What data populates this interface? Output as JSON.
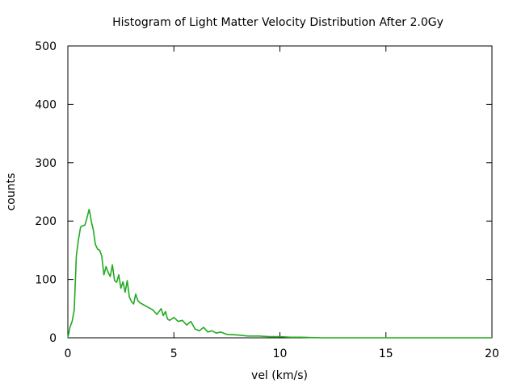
{
  "chart_data": {
    "type": "line",
    "title": "Histogram of Light Matter Velocity Distribution After 2.0Gy",
    "xlabel": "vel (km/s)",
    "ylabel": "counts",
    "xlim": [
      0,
      20
    ],
    "ylim": [
      0,
      500
    ],
    "xticks": [
      0,
      5,
      10,
      15,
      20
    ],
    "yticks": [
      0,
      100,
      200,
      300,
      400,
      500
    ],
    "grid": false,
    "legend": "none",
    "series": [
      {
        "color": "#22aa22",
        "x": [
          0,
          0.1,
          0.2,
          0.3,
          0.4,
          0.5,
          0.6,
          0.7,
          0.8,
          0.9,
          1.0,
          1.05,
          1.1,
          1.2,
          1.3,
          1.4,
          1.5,
          1.6,
          1.7,
          1.8,
          1.9,
          2.0,
          2.1,
          2.2,
          2.3,
          2.4,
          2.5,
          2.6,
          2.7,
          2.8,
          2.9,
          3.0,
          3.1,
          3.2,
          3.3,
          3.4,
          3.5,
          3.6,
          3.8,
          4.0,
          4.2,
          4.4,
          4.5,
          4.6,
          4.7,
          4.8,
          5.0,
          5.2,
          5.4,
          5.6,
          5.8,
          6.0,
          6.2,
          6.4,
          6.6,
          6.8,
          7.0,
          7.2,
          7.5,
          8.0,
          8.5,
          9.0,
          9.5,
          10.0,
          10.5,
          11.0,
          12.0,
          14.0,
          17.0,
          20.0
        ],
        "y": [
          0,
          18,
          28,
          48,
          140,
          168,
          190,
          192,
          193,
          205,
          220,
          212,
          200,
          185,
          160,
          152,
          150,
          140,
          108,
          122,
          112,
          105,
          125,
          98,
          95,
          108,
          85,
          96,
          78,
          98,
          70,
          62,
          58,
          75,
          64,
          60,
          58,
          56,
          52,
          48,
          40,
          50,
          38,
          45,
          32,
          30,
          35,
          28,
          30,
          22,
          28,
          15,
          12,
          18,
          10,
          12,
          8,
          10,
          6,
          5,
          3,
          3,
          2,
          2,
          1,
          1,
          0,
          0,
          0,
          0
        ]
      }
    ]
  }
}
